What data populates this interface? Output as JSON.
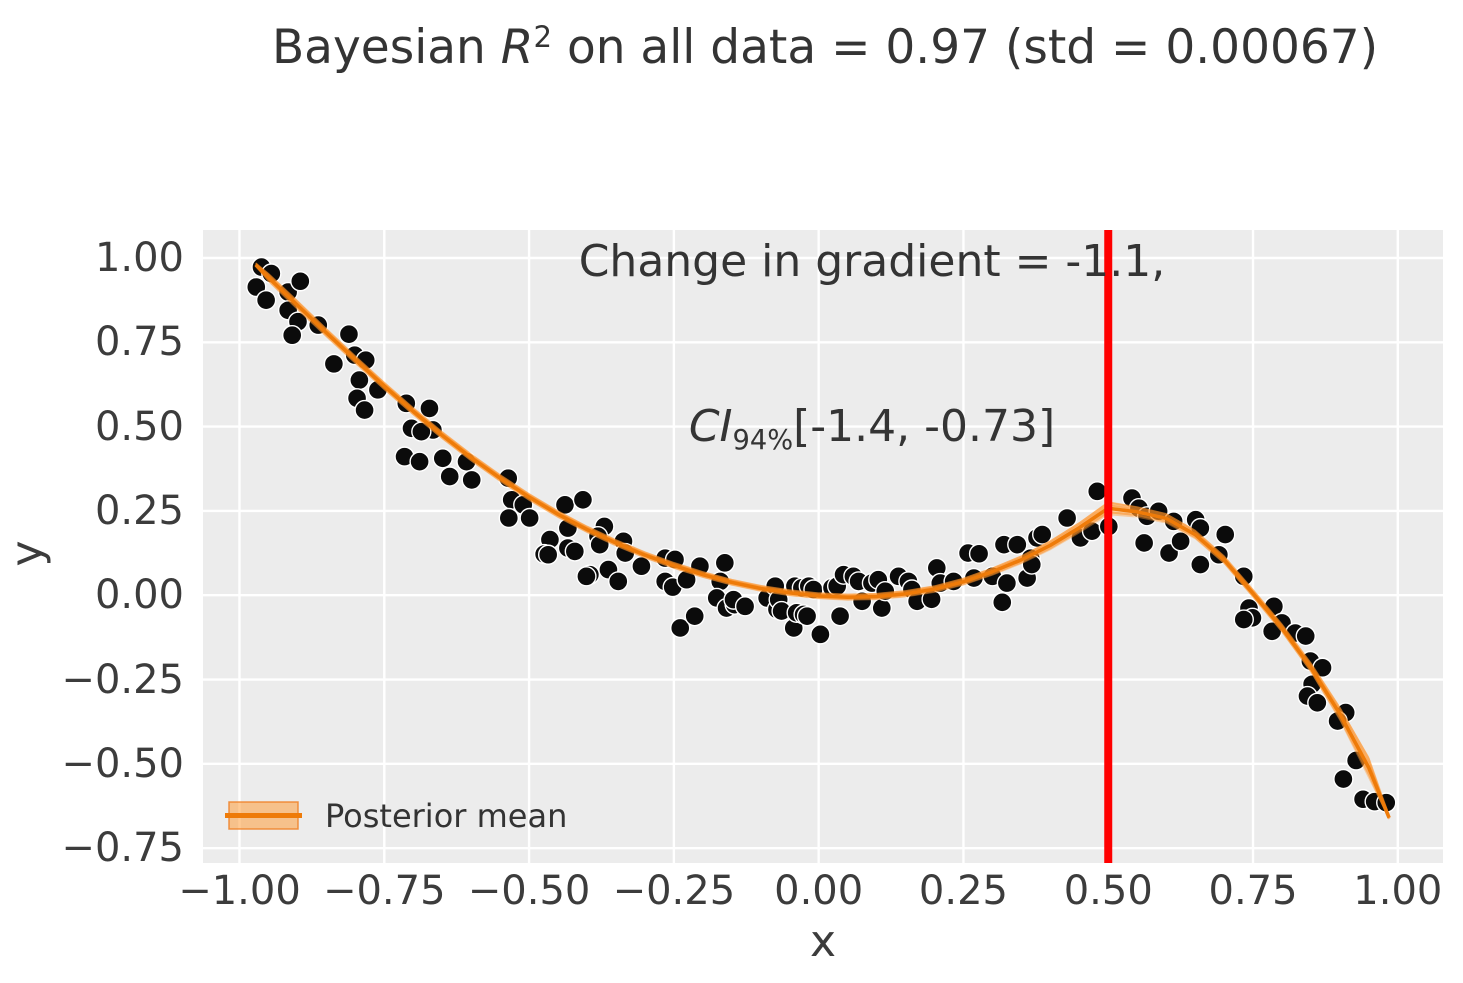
{
  "chart_data": {
    "type": "scatter",
    "title": {
      "pre": "Bayesian ",
      "math_var": "R",
      "sup": "2",
      "post": " on all data = 0.97 (std = 0.00067)"
    },
    "annotation": {
      "line1": "Change in gradient = -1.1,",
      "ci_var": "CI",
      "ci_sub": "94%",
      "ci_range": "[-1.4, -0.73]"
    },
    "xlabel": "x",
    "ylabel": "y",
    "legend": {
      "label": "Posterior mean"
    },
    "x_ticks": [
      -1.0,
      -0.75,
      -0.5,
      -0.25,
      0.0,
      0.25,
      0.5,
      0.75,
      1.0
    ],
    "x_tick_labels": [
      "−1.00",
      "−0.75",
      "−0.50",
      "−0.25",
      "0.00",
      "0.25",
      "0.50",
      "0.75",
      "1.00"
    ],
    "y_ticks": [
      1.0,
      0.75,
      0.5,
      0.25,
      0.0,
      -0.25,
      -0.5,
      -0.75
    ],
    "y_tick_labels": [
      "1.00",
      "0.75",
      "0.50",
      "0.25",
      "0.00",
      "−0.25",
      "−0.50",
      "−0.75"
    ],
    "xlim": [
      -1.063,
      1.078
    ],
    "ylim": [
      -0.794,
      1.083
    ],
    "grid": true,
    "legend_position": "lower left",
    "changepoint_x": 0.5,
    "colors": {
      "scatter": "#0b0b0b",
      "scatter_edge": "#ffffff",
      "mean_line": "#ee7b09",
      "draw_line": "rgba(255,140,26,0.5)",
      "band": "rgba(255,158,60,0.42)",
      "legend_patch_fill": "rgba(255,158,60,0.55)",
      "legend_patch_edge": "rgba(240,130,40,0.85)",
      "changepoint_line": "#ff0000",
      "plot_bg": "#ececec",
      "grid_line": "#ffffff",
      "text": "#343434"
    },
    "posterior_mean": {
      "x": [
        -0.972,
        -0.95,
        -0.9,
        -0.85,
        -0.8,
        -0.75,
        -0.7,
        -0.65,
        -0.6,
        -0.55,
        -0.5,
        -0.45,
        -0.4,
        -0.35,
        -0.3,
        -0.25,
        -0.2,
        -0.15,
        -0.1,
        -0.05,
        0.0,
        0.05,
        0.1,
        0.15,
        0.2,
        0.25,
        0.3,
        0.35,
        0.4,
        0.45,
        0.5,
        0.55,
        0.6,
        0.65,
        0.7,
        0.75,
        0.8,
        0.85,
        0.9,
        0.95,
        0.985
      ],
      "y": [
        0.98,
        0.942,
        0.86,
        0.778,
        0.698,
        0.62,
        0.545,
        0.474,
        0.408,
        0.347,
        0.291,
        0.24,
        0.195,
        0.155,
        0.119,
        0.088,
        0.061,
        0.038,
        0.02,
        0.007,
        -0.002,
        -0.006,
        -0.004,
        0.004,
        0.018,
        0.04,
        0.07,
        0.105,
        0.148,
        0.2,
        0.258,
        0.247,
        0.228,
        0.18,
        0.105,
        0.005,
        -0.098,
        -0.215,
        -0.352,
        -0.512,
        -0.66
      ]
    },
    "credible_band_halfwidth": [
      [
        -0.972,
        0.006
      ],
      [
        -0.95,
        0.014
      ],
      [
        -0.9,
        0.015
      ],
      [
        -0.8,
        0.013
      ],
      [
        -0.6,
        0.012
      ],
      [
        -0.4,
        0.011
      ],
      [
        -0.2,
        0.01
      ],
      [
        0.0,
        0.01
      ],
      [
        0.2,
        0.011
      ],
      [
        0.35,
        0.013
      ],
      [
        0.45,
        0.017
      ],
      [
        0.5,
        0.021
      ],
      [
        0.55,
        0.017
      ],
      [
        0.7,
        0.013
      ],
      [
        0.8,
        0.014
      ],
      [
        0.85,
        0.016
      ],
      [
        0.9,
        0.022
      ],
      [
        0.95,
        0.034
      ],
      [
        0.975,
        0.04
      ],
      [
        0.985,
        0.006
      ]
    ],
    "scatter_points": [
      [
        -0.962,
        0.973
      ],
      [
        -0.945,
        0.954
      ],
      [
        -0.971,
        0.914
      ],
      [
        -0.954,
        0.875
      ],
      [
        -0.916,
        0.899
      ],
      [
        -0.895,
        0.931
      ],
      [
        -0.916,
        0.845
      ],
      [
        -0.899,
        0.811
      ],
      [
        -0.864,
        0.801
      ],
      [
        -0.909,
        0.771
      ],
      [
        -0.811,
        0.774
      ],
      [
        -0.801,
        0.712
      ],
      [
        -0.782,
        0.697
      ],
      [
        -0.837,
        0.686
      ],
      [
        -0.793,
        0.638
      ],
      [
        -0.797,
        0.584
      ],
      [
        -0.784,
        0.549
      ],
      [
        -0.761,
        0.609
      ],
      [
        -0.712,
        0.569
      ],
      [
        -0.672,
        0.554
      ],
      [
        -0.703,
        0.495
      ],
      [
        -0.666,
        0.49
      ],
      [
        -0.686,
        0.485
      ],
      [
        -0.715,
        0.411
      ],
      [
        -0.689,
        0.396
      ],
      [
        -0.649,
        0.406
      ],
      [
        -0.637,
        0.352
      ],
      [
        -0.608,
        0.396
      ],
      [
        -0.599,
        0.342
      ],
      [
        -0.536,
        0.347
      ],
      [
        -0.53,
        0.283
      ],
      [
        -0.51,
        0.268
      ],
      [
        -0.535,
        0.229
      ],
      [
        -0.499,
        0.229
      ],
      [
        -0.438,
        0.268
      ],
      [
        -0.407,
        0.283
      ],
      [
        -0.433,
        0.199
      ],
      [
        -0.464,
        0.165
      ],
      [
        -0.474,
        0.122
      ],
      [
        -0.467,
        0.12
      ],
      [
        -0.433,
        0.14
      ],
      [
        -0.421,
        0.13
      ],
      [
        -0.395,
        0.061
      ],
      [
        -0.401,
        0.056
      ],
      [
        -0.37,
        0.204
      ],
      [
        -0.381,
        0.175
      ],
      [
        -0.378,
        0.15
      ],
      [
        -0.337,
        0.16
      ],
      [
        -0.334,
        0.125
      ],
      [
        -0.363,
        0.076
      ],
      [
        -0.346,
        0.041
      ],
      [
        -0.306,
        0.086
      ],
      [
        -0.265,
        0.11
      ],
      [
        -0.248,
        0.106
      ],
      [
        -0.265,
        0.041
      ],
      [
        -0.252,
        0.024
      ],
      [
        -0.228,
        0.046
      ],
      [
        -0.239,
        -0.097
      ],
      [
        -0.214,
        -0.062
      ],
      [
        -0.205,
        0.086
      ],
      [
        -0.162,
        0.096
      ],
      [
        -0.17,
        0.041
      ],
      [
        -0.176,
        -0.008
      ],
      [
        -0.159,
        -0.038
      ],
      [
        -0.145,
        -0.028
      ],
      [
        -0.147,
        -0.013
      ],
      [
        -0.127,
        -0.033
      ],
      [
        -0.089,
        -0.008
      ],
      [
        -0.075,
        0.027
      ],
      [
        -0.072,
        -0.042
      ],
      [
        -0.069,
        -0.013
      ],
      [
        -0.064,
        -0.047
      ],
      [
        -0.043,
        -0.097
      ],
      [
        -0.041,
        0.027
      ],
      [
        -0.038,
        -0.052
      ],
      [
        -0.029,
        0.022
      ],
      [
        -0.026,
        -0.057
      ],
      [
        -0.02,
        -0.062
      ],
      [
        -0.017,
        0.027
      ],
      [
        -0.009,
        0.017
      ],
      [
        0.003,
        -0.116
      ],
      [
        0.023,
        0.022
      ],
      [
        0.032,
        0.027
      ],
      [
        0.037,
        -0.062
      ],
      [
        0.043,
        0.061
      ],
      [
        0.06,
        0.056
      ],
      [
        0.069,
        0.041
      ],
      [
        0.075,
        -0.018
      ],
      [
        0.092,
        0.036
      ],
      [
        0.103,
        0.046
      ],
      [
        0.109,
        -0.038
      ],
      [
        0.115,
        0.012
      ],
      [
        0.138,
        0.056
      ],
      [
        0.155,
        0.041
      ],
      [
        0.161,
        0.017
      ],
      [
        0.17,
        -0.018
      ],
      [
        0.195,
        -0.012
      ],
      [
        0.204,
        0.081
      ],
      [
        0.21,
        0.036
      ],
      [
        0.233,
        0.041
      ],
      [
        0.258,
        0.125
      ],
      [
        0.277,
        0.123
      ],
      [
        0.268,
        0.051
      ],
      [
        0.3,
        0.056
      ],
      [
        0.32,
        0.15
      ],
      [
        0.343,
        0.15
      ],
      [
        0.325,
        0.036
      ],
      [
        0.317,
        -0.021
      ],
      [
        0.36,
        0.051
      ],
      [
        0.366,
        0.11
      ],
      [
        0.368,
        0.091
      ],
      [
        0.377,
        0.17
      ],
      [
        0.386,
        0.18
      ],
      [
        0.429,
        0.229
      ],
      [
        0.452,
        0.17
      ],
      [
        0.472,
        0.19
      ],
      [
        0.481,
        0.308
      ],
      [
        0.501,
        0.204
      ],
      [
        0.541,
        0.288
      ],
      [
        0.553,
        0.258
      ],
      [
        0.567,
        0.234
      ],
      [
        0.587,
        0.249
      ],
      [
        0.613,
        0.219
      ],
      [
        0.651,
        0.224
      ],
      [
        0.659,
        0.199
      ],
      [
        0.562,
        0.155
      ],
      [
        0.605,
        0.125
      ],
      [
        0.625,
        0.16
      ],
      [
        0.659,
        0.091
      ],
      [
        0.691,
        0.12
      ],
      [
        0.702,
        0.18
      ],
      [
        0.734,
        0.056
      ],
      [
        0.743,
        -0.038
      ],
      [
        0.749,
        -0.067
      ],
      [
        0.734,
        -0.072
      ],
      [
        0.786,
        -0.033
      ],
      [
        0.8,
        -0.082
      ],
      [
        0.783,
        -0.107
      ],
      [
        0.823,
        -0.112
      ],
      [
        0.841,
        -0.121
      ],
      [
        0.849,
        -0.195
      ],
      [
        0.87,
        -0.215
      ],
      [
        0.852,
        -0.264
      ],
      [
        0.844,
        -0.299
      ],
      [
        0.861,
        -0.319
      ],
      [
        0.91,
        -0.348
      ],
      [
        0.896,
        -0.373
      ],
      [
        0.928,
        -0.49
      ],
      [
        0.906,
        -0.545
      ],
      [
        0.94,
        -0.605
      ],
      [
        0.96,
        -0.612
      ],
      [
        0.98,
        -0.615
      ]
    ]
  }
}
